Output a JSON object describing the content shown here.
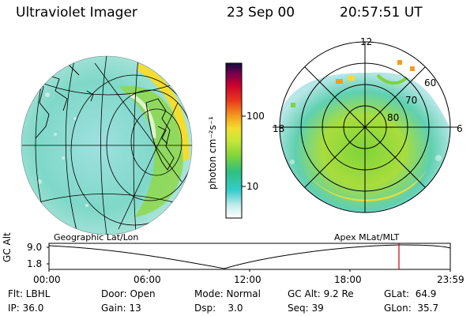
{
  "header": {
    "title": "Ultraviolet Imager",
    "date": "23 Sep 00",
    "time": "20:57:51 UT"
  },
  "colorbar": {
    "unit_label": "photon cm⁻²s⁻¹",
    "ticks": [
      "100",
      "10"
    ]
  },
  "polar_plot": {
    "hour_labels": [
      "12",
      "18",
      "6"
    ],
    "lat_labels": [
      "60",
      "70",
      "80"
    ],
    "title": "Apex MLat/MLT"
  },
  "map_plot": {
    "title": "Geographic Lat/Lon"
  },
  "altitude_plot": {
    "ylabel": "GC Alt",
    "yticks": [
      "9.0",
      "1.8"
    ],
    "xticks": [
      "00:00",
      "06:00",
      "12:00",
      "18:00",
      "23:59"
    ],
    "current_time_marker": "20:57"
  },
  "status": {
    "flt": "Flt: LBHL",
    "ip": "IP: 36.0",
    "door": "Door: Open",
    "gain": "Gain: 13",
    "mode": "Mode: Normal",
    "dsp": "Dsp:    3.0",
    "gc_alt": "GC Alt: 9.2 Re",
    "seq": "Seq: 39",
    "glat": "GLat:  64.9",
    "glon": "GLon:  35.7"
  },
  "colors": {
    "background": "#ffffff",
    "grid": "#000000",
    "marker": "#cc0000",
    "scale": [
      "#e8e8e8",
      "#9fe0e0",
      "#33cccc",
      "#2fbf7f",
      "#7fd43a",
      "#c8e63a",
      "#f2dd30",
      "#f49a1f",
      "#e8371c",
      "#c8002d",
      "#6d0050",
      "#10103a"
    ]
  }
}
